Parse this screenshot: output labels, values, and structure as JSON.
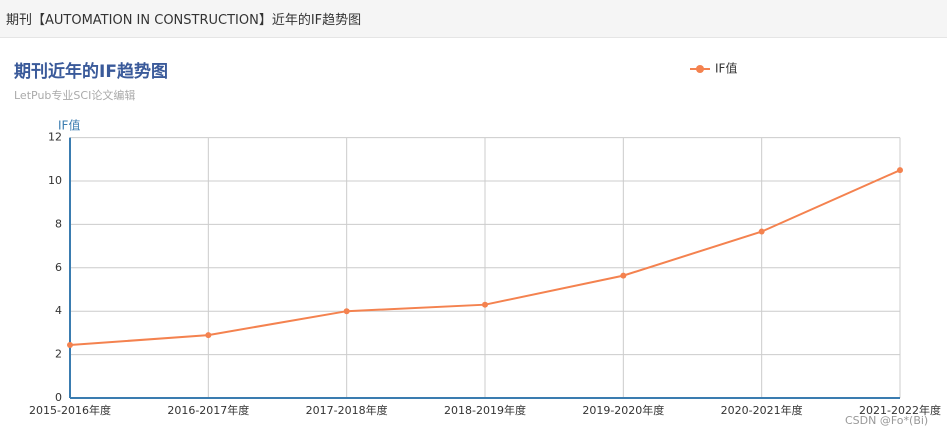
{
  "header": {
    "title": "期刊【AUTOMATION IN CONSTRUCTION】近年的IF趋势图"
  },
  "chart_data": {
    "type": "line",
    "title": "期刊近年的IF趋势图",
    "subtitle": "LetPub专业SCI论文编辑",
    "y_label": "IF值",
    "categories": [
      "2015-2016年度",
      "2016-2017年度",
      "2017-2018年度",
      "2018-2019年度",
      "2019-2020年度",
      "2020-2021年度",
      "2021-2022年度"
    ],
    "series": [
      {
        "name": "IF值",
        "color": "#f4824f",
        "values": [
          2.44,
          2.9,
          4.0,
          4.3,
          5.64,
          7.67,
          10.5
        ]
      }
    ],
    "ylim": [
      0,
      12
    ],
    "yticks": [
      0,
      2,
      4,
      6,
      8,
      10,
      12
    ],
    "grid": true
  },
  "watermark": "CSDN @Fo*(Bi)"
}
